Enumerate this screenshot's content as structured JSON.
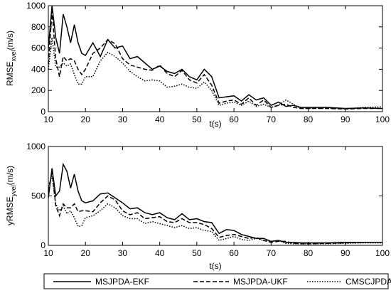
{
  "chart_data": [
    {
      "type": "line",
      "ylabel": "RMSE",
      "ylabel_sub": "xvel",
      "ylabel_unit": "(m/s)",
      "xlabel": "t(s)",
      "x": [
        10,
        11,
        12,
        13,
        14,
        15,
        16,
        17,
        18,
        19,
        20,
        22,
        24,
        26,
        28,
        30,
        32,
        34,
        36,
        38,
        40,
        42,
        44,
        46,
        48,
        50,
        52,
        54,
        56,
        58,
        60,
        62,
        64,
        66,
        68,
        70,
        72,
        74,
        76,
        78,
        80,
        85,
        90,
        95,
        100
      ],
      "xlim": [
        10,
        100
      ],
      "xticks": [
        10,
        20,
        30,
        40,
        50,
        60,
        70,
        80,
        90,
        100
      ],
      "ylim": [
        0,
        1000
      ],
      "yticks": [
        0,
        200,
        400,
        600,
        800,
        1000
      ],
      "series": [
        {
          "name": "MSJPDA-EKF",
          "color": "#000000",
          "dash": "solid",
          "values": [
            600,
            1000,
            700,
            550,
            920,
            800,
            650,
            820,
            650,
            550,
            530,
            650,
            520,
            680,
            600,
            620,
            500,
            520,
            460,
            400,
            430,
            380,
            360,
            400,
            330,
            300,
            400,
            330,
            130,
            140,
            150,
            100,
            160,
            110,
            130,
            60,
            90,
            50,
            60,
            40,
            40,
            40,
            30,
            35,
            30
          ]
        },
        {
          "name": "MSJPDA-UKF",
          "color": "#000000",
          "dash": "dashed",
          "values": [
            450,
            950,
            500,
            330,
            520,
            480,
            500,
            480,
            400,
            350,
            400,
            550,
            600,
            680,
            640,
            500,
            440,
            420,
            400,
            390,
            440,
            360,
            330,
            390,
            300,
            270,
            350,
            250,
            80,
            100,
            110,
            70,
            130,
            60,
            110,
            40,
            60,
            70,
            40,
            30,
            30,
            30,
            25,
            30,
            30
          ]
        },
        {
          "name": "CMSCJPDA",
          "color": "#000000",
          "dash": "dotted",
          "values": [
            400,
            700,
            420,
            420,
            460,
            430,
            450,
            350,
            260,
            260,
            330,
            330,
            480,
            560,
            520,
            460,
            380,
            330,
            290,
            300,
            290,
            230,
            240,
            260,
            230,
            220,
            280,
            200,
            60,
            80,
            90,
            60,
            100,
            50,
            70,
            40,
            60,
            110,
            70,
            30,
            30,
            35,
            25,
            40,
            45
          ]
        }
      ]
    },
    {
      "type": "line",
      "ylabel": "yRMSE",
      "ylabel_sub": "yvel",
      "ylabel_unit": "(m/s)",
      "xlabel": "t(s)",
      "x": [
        10,
        11,
        12,
        13,
        14,
        15,
        16,
        17,
        18,
        19,
        20,
        22,
        24,
        26,
        28,
        30,
        32,
        34,
        36,
        38,
        40,
        42,
        44,
        46,
        48,
        50,
        52,
        54,
        56,
        58,
        60,
        62,
        64,
        66,
        68,
        70,
        72,
        74,
        76,
        78,
        80,
        85,
        90,
        95,
        100
      ],
      "xlim": [
        10,
        100
      ],
      "xticks": [
        10,
        20,
        30,
        40,
        50,
        60,
        70,
        80,
        90,
        100
      ],
      "ylim": [
        0,
        1000
      ],
      "yticks": [
        0,
        500,
        1000
      ],
      "series": [
        {
          "color": "#000000",
          "dash": "solid",
          "values": [
            480,
            780,
            500,
            550,
            820,
            750,
            580,
            720,
            550,
            450,
            430,
            450,
            520,
            530,
            480,
            430,
            370,
            380,
            330,
            310,
            330,
            280,
            260,
            320,
            260,
            270,
            240,
            230,
            120,
            160,
            150,
            110,
            90,
            70,
            70,
            40,
            50,
            30,
            30,
            25,
            25,
            25,
            30,
            30,
            30
          ]
        },
        {
          "color": "#000000",
          "dash": "dashed",
          "values": [
            550,
            750,
            400,
            300,
            420,
            380,
            380,
            420,
            340,
            350,
            350,
            340,
            430,
            500,
            460,
            350,
            310,
            330,
            270,
            280,
            290,
            240,
            230,
            270,
            230,
            230,
            210,
            170,
            80,
            100,
            110,
            90,
            70,
            80,
            50,
            30,
            40,
            40,
            20,
            15,
            15,
            20,
            25,
            30,
            30
          ]
        },
        {
          "color": "#000000",
          "dash": "dotted",
          "values": [
            600,
            700,
            420,
            350,
            400,
            320,
            350,
            280,
            190,
            200,
            280,
            300,
            350,
            420,
            380,
            300,
            270,
            270,
            220,
            240,
            220,
            200,
            180,
            200,
            170,
            180,
            150,
            140,
            50,
            70,
            90,
            60,
            50,
            70,
            50,
            40,
            50,
            20,
            15,
            15,
            15,
            15,
            20,
            25,
            25
          ]
        }
      ]
    }
  ]
}
